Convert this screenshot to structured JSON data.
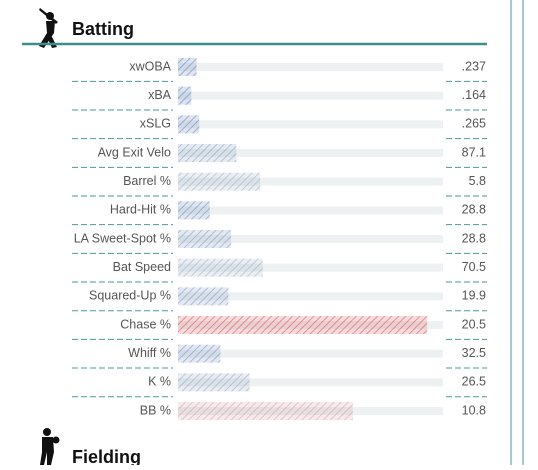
{
  "sections": [
    {
      "title": "Batting",
      "rows": [
        {
          "label": "xwOBA",
          "value": ".237",
          "percentile": 7
        },
        {
          "label": "xBA",
          "value": ".164",
          "percentile": 5
        },
        {
          "label": "xSLG",
          "value": ".265",
          "percentile": 8
        },
        {
          "label": "Avg Exit Velo",
          "value": "87.1",
          "percentile": 22
        },
        {
          "label": "Barrel %",
          "value": "5.8",
          "percentile": 31
        },
        {
          "label": "Hard-Hit %",
          "value": "28.8",
          "percentile": 12
        },
        {
          "label": "LA Sweet-Spot %",
          "value": "28.8",
          "percentile": 20
        },
        {
          "label": "Bat Speed",
          "value": "70.5",
          "percentile": 32
        },
        {
          "label": "Squared-Up %",
          "value": "19.9",
          "percentile": 19
        },
        {
          "label": "Chase %",
          "value": "20.5",
          "percentile": 94
        },
        {
          "label": "Whiff %",
          "value": "32.5",
          "percentile": 16
        },
        {
          "label": "K %",
          "value": "26.5",
          "percentile": 27
        },
        {
          "label": "BB %",
          "value": "10.8",
          "percentile": 66
        }
      ]
    },
    {
      "title": "Fielding"
    }
  ]
}
